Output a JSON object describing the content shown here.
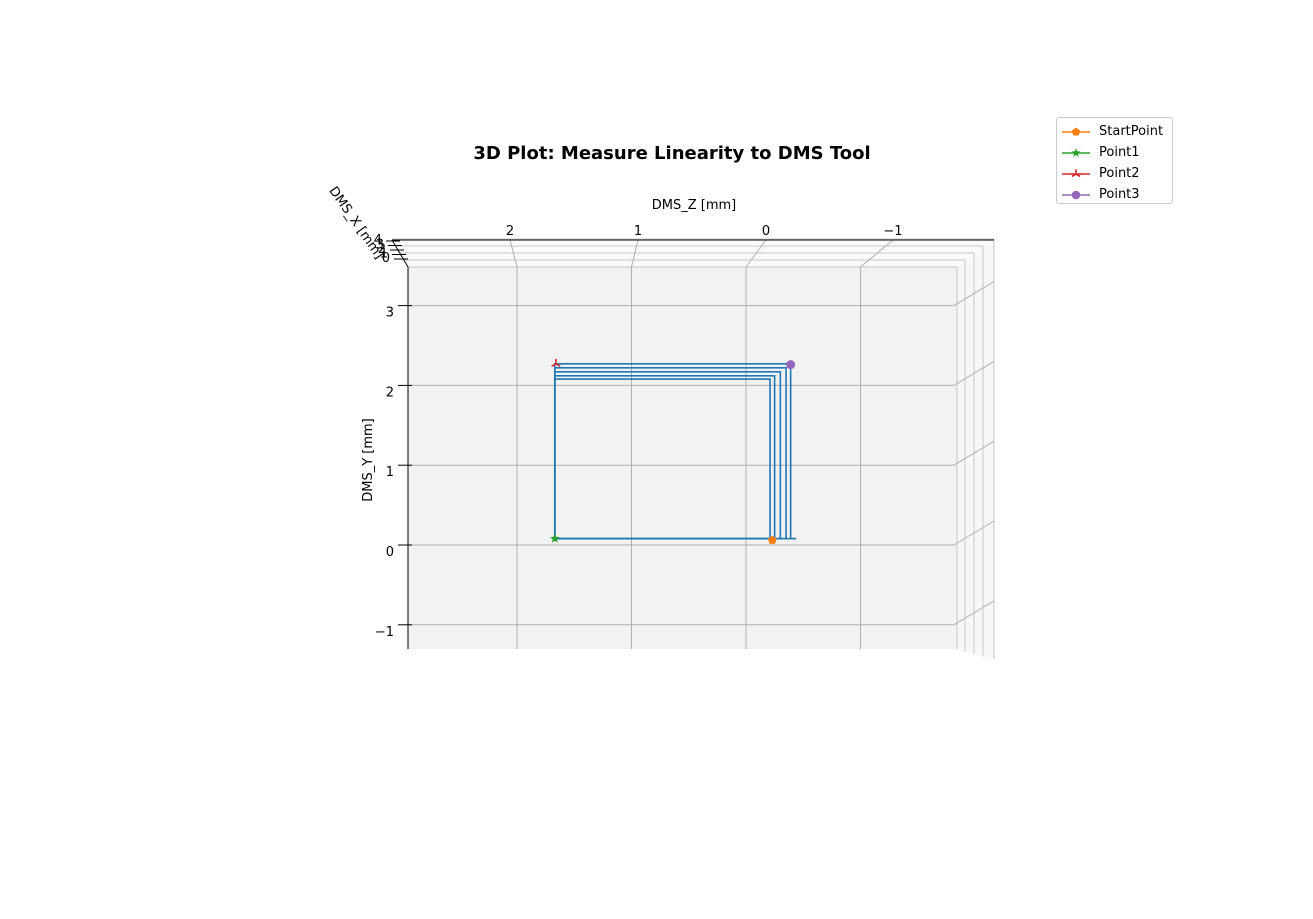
{
  "chart_data": {
    "type": "line",
    "projection": "3d",
    "title": "3D Plot: Measure Linearity to DMS Tool",
    "xlabel": "DMS_X [mm]",
    "ylabel": "DMS_Y [mm]",
    "zlabel": "DMS_Z [mm]",
    "z_ticks": [
      "2",
      "1",
      "0",
      "−1"
    ],
    "y_ticks": [
      "3",
      "2",
      "1",
      "0",
      "−1"
    ],
    "x_ticks_partial": [
      "0",
      "1",
      "2",
      "3",
      "4"
    ],
    "ylim": [
      -1.3,
      3.5
    ],
    "zlim": [
      2.9,
      -1.9
    ],
    "grid": true,
    "legend_position": "upper-right outside",
    "accent_color": "#1f77b4",
    "trace": {
      "name": "",
      "color": "#1f77b4",
      "loops": [
        {
          "z_left": 1.67,
          "z_right": -0.39,
          "y_bottom": 0.08,
          "y_top": 2.27
        },
        {
          "z_left": 1.67,
          "z_right": -0.35,
          "y_bottom": 0.08,
          "y_top": 2.22
        },
        {
          "z_left": 1.67,
          "z_right": -0.3,
          "y_bottom": 0.08,
          "y_top": 2.17
        },
        {
          "z_left": 1.67,
          "z_right": -0.25,
          "y_bottom": 0.08,
          "y_top": 2.12
        },
        {
          "z_left": 1.67,
          "z_right": -0.21,
          "y_bottom": 0.08,
          "y_top": 2.08
        }
      ]
    },
    "points": [
      {
        "name": "StartPoint",
        "z": -0.23,
        "y": 0.06,
        "color": "#ff7f0e",
        "marker": "pentagon"
      },
      {
        "name": "Point1",
        "z": 1.67,
        "y": 0.08,
        "color": "#2ca02c",
        "marker": "star"
      },
      {
        "name": "Point2",
        "z": 1.66,
        "y": 2.27,
        "color": "#d62728",
        "marker": "tri-star"
      },
      {
        "name": "Point3",
        "z": -0.39,
        "y": 2.26,
        "color": "#9467bd",
        "marker": "circle"
      }
    ]
  }
}
